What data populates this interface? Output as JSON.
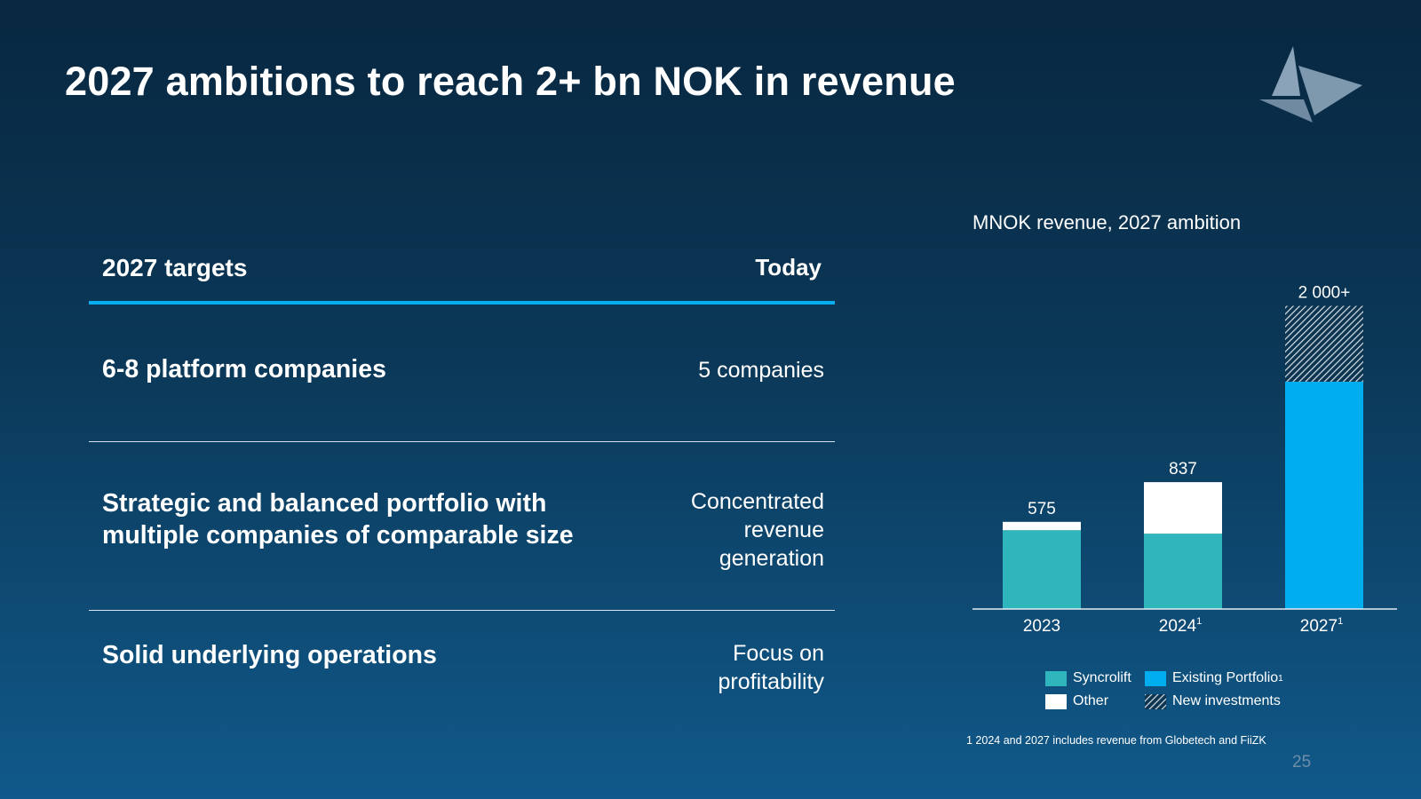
{
  "slide": {
    "title": "2027 ambitions to reach 2+ bn NOK in revenue",
    "page_number": "25",
    "footnote": "1 2024 and 2027 includes revenue from Globetech and FiiZK"
  },
  "targets": {
    "header_left": "2027 targets",
    "header_right": "Today",
    "rows": [
      {
        "label": "6-8 platform companies",
        "value": "5 companies"
      },
      {
        "label": "Strategic and balanced portfolio with multiple companies of comparable size",
        "value": "Concentrated\nrevenue\ngeneration"
      },
      {
        "label": "Solid underlying operations",
        "value": "Focus on\nprofitability"
      }
    ]
  },
  "colors": {
    "syncrolift": "#2fb6bd",
    "other": "#ffffff",
    "existing_portfolio": "#00adef",
    "new_investments_hatch": "#d9dee3",
    "accent_rule": "#05aef0"
  },
  "chart_data": {
    "type": "bar",
    "stacked": true,
    "title": "MNOK revenue, 2027 ambition",
    "categories": [
      "2023",
      "2024",
      "2027"
    ],
    "category_superscripts": [
      "",
      "1",
      "1"
    ],
    "series": [
      {
        "name": "Syncrolift",
        "values": [
          520,
          497,
          0
        ],
        "color": "#2fb6bd"
      },
      {
        "name": "Other",
        "values": [
          55,
          340,
          0
        ],
        "color": "#ffffff"
      },
      {
        "name": "Existing Portfolio",
        "values": [
          0,
          0,
          1500
        ],
        "color": "#00adef"
      },
      {
        "name": "New investments",
        "values": [
          0,
          0,
          500
        ],
        "pattern": "hatch"
      }
    ],
    "totals": [
      "575",
      "837",
      "2 000+"
    ],
    "ylim": [
      0,
      2050
    ],
    "grid": false,
    "legend": {
      "position": "bottom",
      "entries": [
        {
          "name": "Syncrolift",
          "sup": ""
        },
        {
          "name": "Existing Portfolio",
          "sup": "1"
        },
        {
          "name": "Other",
          "sup": ""
        },
        {
          "name": "New investments",
          "sup": ""
        }
      ]
    }
  }
}
